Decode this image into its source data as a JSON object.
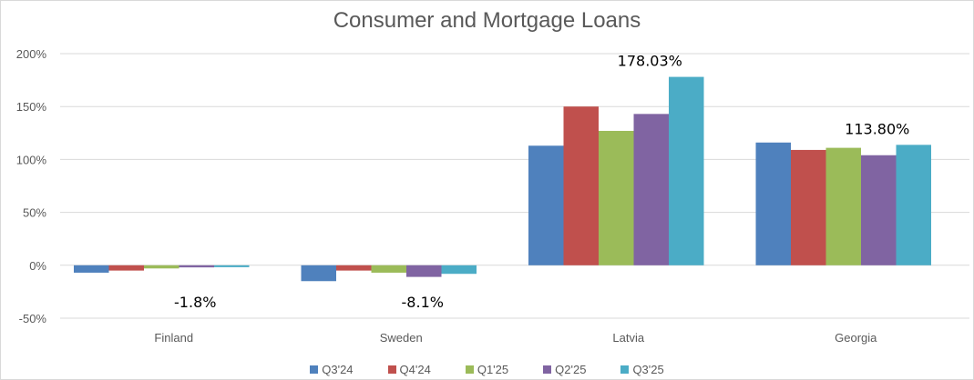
{
  "chart_data": {
    "type": "bar",
    "title": "Consumer and Mortgage Loans",
    "xlabel": "",
    "ylabel": "",
    "categories": [
      "Finland",
      "Sweden",
      "Latvia",
      "Georgia"
    ],
    "ylim": [
      -50,
      200
    ],
    "yticks": [
      -50,
      0,
      50,
      100,
      150,
      200
    ],
    "ytick_labels": [
      "-50%",
      "0%",
      "50%",
      "100%",
      "150%",
      "200%"
    ],
    "grid": true,
    "legend_position": "bottom",
    "series": [
      {
        "name": "Q3'24",
        "color": "#4f81bd",
        "values": [
          -7,
          -15,
          113,
          116
        ]
      },
      {
        "name": "Q4'24",
        "color": "#c0504d",
        "values": [
          -5,
          -5,
          150,
          109
        ]
      },
      {
        "name": "Q1'25",
        "color": "#9bbb59",
        "values": [
          -3,
          -7,
          127,
          111
        ]
      },
      {
        "name": "Q2'25",
        "color": "#8064a2",
        "values": [
          -2,
          -11,
          143,
          104
        ]
      },
      {
        "name": "Q3'25",
        "color": "#4bacc6",
        "values": [
          -1.8,
          -8.1,
          178.03,
          113.8
        ]
      }
    ],
    "data_labels": [
      {
        "series": 4,
        "category": 0,
        "text": "-1.8%"
      },
      {
        "series": 4,
        "category": 1,
        "text": "-8.1%"
      },
      {
        "series": 4,
        "category": 2,
        "text": "178.03%"
      },
      {
        "series": 4,
        "category": 3,
        "text": "113.80%"
      }
    ]
  }
}
